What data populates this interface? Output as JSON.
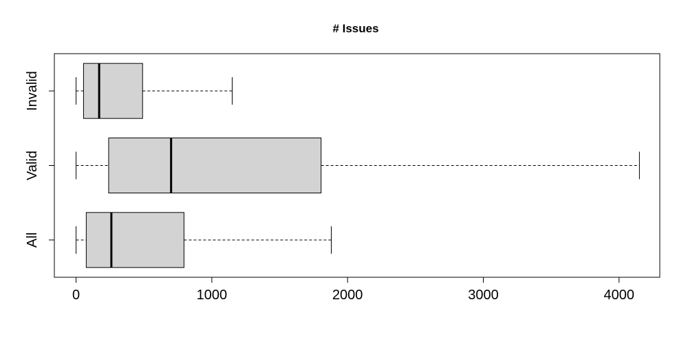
{
  "chart_data": {
    "type": "boxplot",
    "orientation": "horizontal",
    "title": "# Issues",
    "xlabel": "",
    "ylabel": "",
    "xlim": [
      -160,
      4300
    ],
    "x_ticks": [
      0,
      1000,
      2000,
      3000,
      4000
    ],
    "x_tick_labels": [
      "0",
      "1000",
      "2000",
      "3000",
      "4000"
    ],
    "grid": false,
    "box_fill": "#d3d3d3",
    "line_color": "#000000",
    "categories": [
      "All",
      "Valid",
      "Invalid"
    ],
    "boxes": [
      {
        "category": "All",
        "min": 0,
        "q1": 75,
        "median": 260,
        "q3": 795,
        "max": 1880
      },
      {
        "category": "Valid",
        "min": 0,
        "q1": 240,
        "median": 700,
        "q3": 1805,
        "max": 4150
      },
      {
        "category": "Invalid",
        "min": 0,
        "q1": 55,
        "median": 170,
        "q3": 490,
        "max": 1150
      }
    ]
  }
}
